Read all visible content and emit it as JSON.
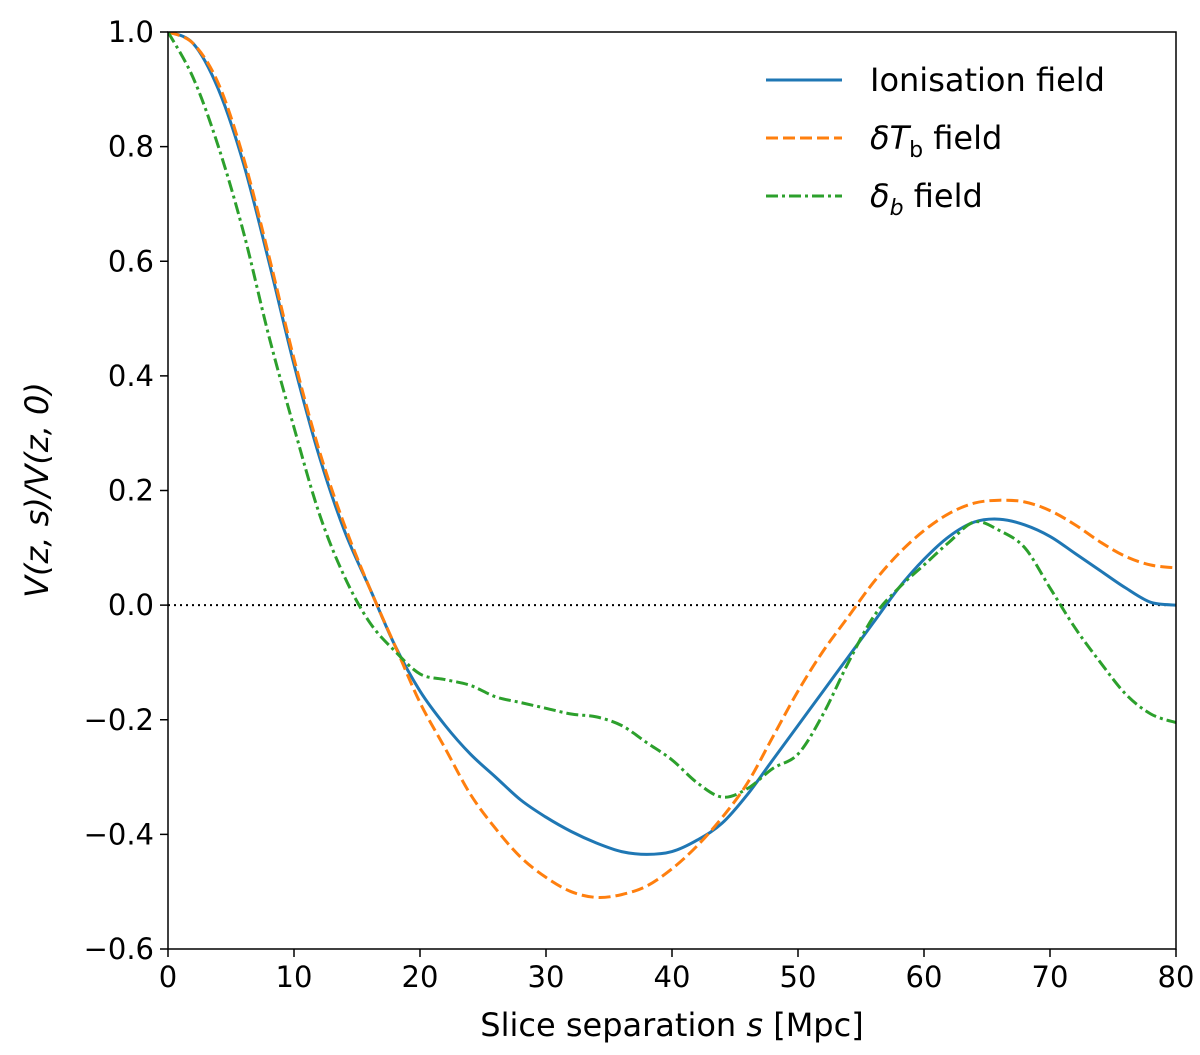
{
  "chart_data": {
    "type": "line",
    "title": "",
    "xlabel_prefix": "Slice separation ",
    "xlabel_var": "s",
    "xlabel_unit": " [Mpc]",
    "ylabel": "V(z, s)/V(z, 0)",
    "xlim": [
      0,
      80
    ],
    "ylim": [
      -0.6,
      1.0
    ],
    "xticks": [
      0,
      10,
      20,
      30,
      40,
      50,
      60,
      70,
      80
    ],
    "yticks": [
      -0.6,
      -0.4,
      -0.2,
      0.0,
      0.2,
      0.4,
      0.6,
      0.8,
      1.0
    ],
    "xtick_labels": [
      "0",
      "10",
      "20",
      "30",
      "40",
      "50",
      "60",
      "70",
      "80"
    ],
    "ytick_labels": [
      "−0.6",
      "−0.4",
      "−0.2",
      "0.0",
      "0.2",
      "0.4",
      "0.6",
      "0.8",
      "1.0"
    ],
    "grid": false,
    "zero_line": {
      "y": 0.0,
      "style": "dotted",
      "color": "#000000"
    },
    "legend_position": "top-right",
    "series": [
      {
        "name": "Ionisation field",
        "legend_text": "Ionisation field",
        "color": "#1f77b4",
        "style": "solid",
        "x": [
          0,
          2,
          4,
          6,
          8,
          10,
          12,
          14,
          16,
          18,
          20,
          22,
          24,
          26,
          28,
          30,
          32,
          34,
          36,
          38,
          40,
          42,
          44,
          46,
          48,
          50,
          52,
          54,
          56,
          58,
          60,
          62,
          64,
          66,
          68,
          70,
          72,
          74,
          76,
          78,
          80
        ],
        "y": [
          1.0,
          0.98,
          0.9,
          0.77,
          0.6,
          0.42,
          0.26,
          0.13,
          0.03,
          -0.07,
          -0.15,
          -0.21,
          -0.26,
          -0.3,
          -0.34,
          -0.37,
          -0.395,
          -0.415,
          -0.43,
          -0.435,
          -0.43,
          -0.41,
          -0.38,
          -0.33,
          -0.27,
          -0.21,
          -0.15,
          -0.09,
          -0.03,
          0.03,
          0.08,
          0.12,
          0.145,
          0.15,
          0.14,
          0.12,
          0.09,
          0.06,
          0.03,
          0.005,
          0.0
        ]
      },
      {
        "name": "δTb field",
        "legend_sym": "δT",
        "legend_sub": "b",
        "legend_suffix": " field",
        "color": "#ff7f0e",
        "style": "dashed",
        "x": [
          0,
          2,
          4,
          6,
          8,
          10,
          12,
          14,
          16,
          18,
          20,
          22,
          24,
          26,
          28,
          30,
          32,
          34,
          36,
          38,
          40,
          42,
          44,
          46,
          48,
          50,
          52,
          54,
          56,
          58,
          60,
          62,
          64,
          66,
          68,
          70,
          72,
          74,
          76,
          78,
          80
        ],
        "y": [
          1.0,
          0.98,
          0.91,
          0.78,
          0.61,
          0.43,
          0.27,
          0.14,
          0.03,
          -0.07,
          -0.17,
          -0.25,
          -0.33,
          -0.39,
          -0.44,
          -0.475,
          -0.5,
          -0.51,
          -0.505,
          -0.49,
          -0.46,
          -0.42,
          -0.37,
          -0.31,
          -0.23,
          -0.15,
          -0.08,
          -0.02,
          0.04,
          0.09,
          0.13,
          0.16,
          0.178,
          0.183,
          0.18,
          0.165,
          0.14,
          0.11,
          0.085,
          0.07,
          0.065
        ]
      },
      {
        "name": "δb field",
        "legend_sym": "δ",
        "legend_sub": "b",
        "legend_suffix": " field",
        "color": "#2ca02c",
        "style": "dashdot",
        "x": [
          0,
          2,
          4,
          6,
          8,
          10,
          12,
          14,
          16,
          18,
          20,
          22,
          24,
          26,
          28,
          30,
          32,
          34,
          36,
          38,
          40,
          42,
          44,
          46,
          48,
          50,
          52,
          54,
          56,
          58,
          60,
          62,
          64,
          66,
          68,
          70,
          72,
          74,
          76,
          78,
          80
        ],
        "y": [
          1.0,
          0.92,
          0.8,
          0.65,
          0.47,
          0.31,
          0.16,
          0.05,
          -0.03,
          -0.08,
          -0.12,
          -0.13,
          -0.14,
          -0.16,
          -0.17,
          -0.18,
          -0.19,
          -0.195,
          -0.21,
          -0.24,
          -0.27,
          -0.31,
          -0.335,
          -0.32,
          -0.285,
          -0.26,
          -0.19,
          -0.1,
          -0.02,
          0.03,
          0.07,
          0.11,
          0.145,
          0.13,
          0.1,
          0.03,
          -0.04,
          -0.1,
          -0.155,
          -0.19,
          -0.205
        ]
      }
    ]
  }
}
